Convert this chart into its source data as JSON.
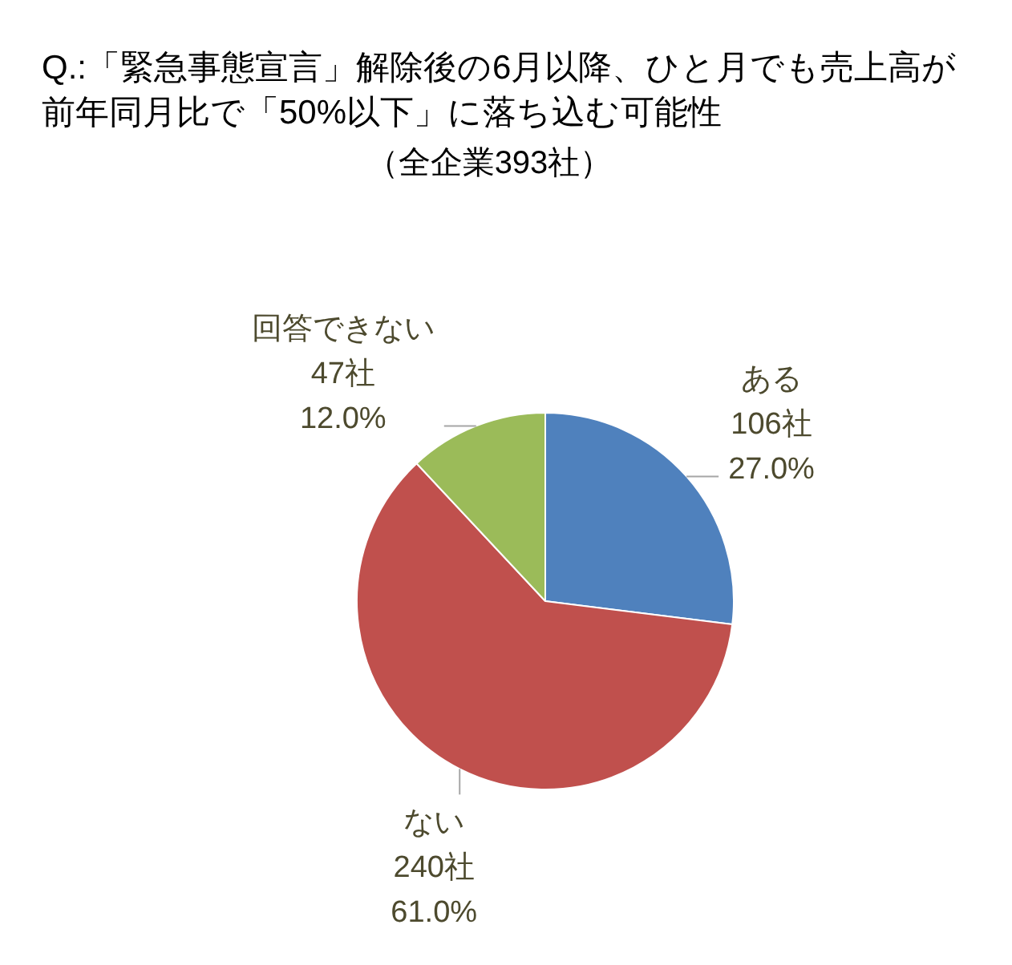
{
  "chart_data": {
    "type": "pie",
    "title": "Q.:「緊急事態宣言」解除後の6月以降、ひと月でも売上高が前年同月比で「50%以下」に落ち込む可能性",
    "subtitle": "（全企業393社）",
    "categories": [
      "ある",
      "ない",
      "回答できない"
    ],
    "values": [
      106,
      240,
      47
    ],
    "colors": [
      "#4f81bd",
      "#c0504d",
      "#9bbb59"
    ],
    "value_labels": [
      "106社\n27.0%",
      "240社\n61.0%",
      "47社\n12.0%"
    ]
  }
}
